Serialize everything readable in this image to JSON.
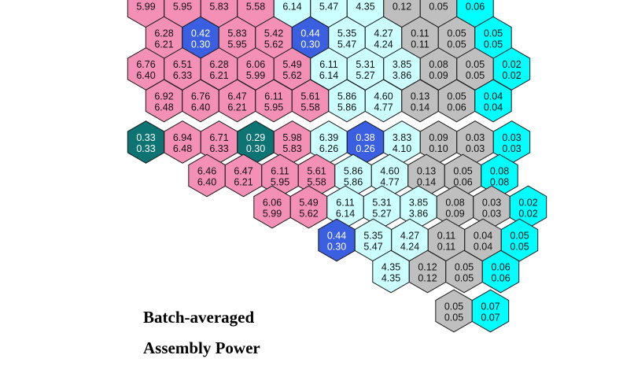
{
  "colors": {
    "pink": "#f48fb6",
    "light_cyan": "#ccffff",
    "gray": "#bfbfbf",
    "cyan": "#00ffff",
    "blue": "#3a5fe0",
    "teal": "#0e7373"
  },
  "legend": {
    "line1": "Batch-averaged",
    "line2": "Assembly Power"
  },
  "rows": [
    {
      "cells": [
        {
          "top": "5.99",
          "bottom": "",
          "color": "pink"
        },
        {
          "top": "5.95",
          "bottom": "",
          "color": "pink"
        },
        {
          "top": "5.83",
          "bottom": "",
          "color": "pink"
        },
        {
          "top": "5.58",
          "bottom": "",
          "color": "pink"
        },
        {
          "top": "6.14",
          "bottom": "",
          "color": "light_cyan"
        },
        {
          "top": "5.47",
          "bottom": "",
          "color": "light_cyan"
        },
        {
          "top": "4.35",
          "bottom": "",
          "color": "light_cyan"
        },
        {
          "top": "0.12",
          "bottom": "",
          "color": "gray"
        },
        {
          "top": "0.05",
          "bottom": "",
          "color": "gray"
        },
        {
          "top": "0.06",
          "bottom": "",
          "color": "cyan"
        }
      ]
    },
    {
      "cells": [
        {
          "top": "6.28",
          "bottom": "6.21",
          "color": "pink"
        },
        {
          "top": "0.42",
          "bottom": "0.30",
          "color": "blue"
        },
        {
          "top": "5.83",
          "bottom": "5.95",
          "color": "pink"
        },
        {
          "top": "5.42",
          "bottom": "5.62",
          "color": "pink"
        },
        {
          "top": "0.44",
          "bottom": "0.30",
          "color": "blue"
        },
        {
          "top": "5.35",
          "bottom": "5.47",
          "color": "light_cyan"
        },
        {
          "top": "4.27",
          "bottom": "4.24",
          "color": "light_cyan"
        },
        {
          "top": "0.11",
          "bottom": "0.11",
          "color": "gray"
        },
        {
          "top": "0.05",
          "bottom": "0.05",
          "color": "gray"
        },
        {
          "top": "0.05",
          "bottom": "0.05",
          "color": "cyan"
        }
      ]
    },
    {
      "cells": [
        {
          "top": "6.76",
          "bottom": "6.40",
          "color": "pink"
        },
        {
          "top": "6.51",
          "bottom": "6.33",
          "color": "pink"
        },
        {
          "top": "6.28",
          "bottom": "6.21",
          "color": "pink"
        },
        {
          "top": "6.06",
          "bottom": "5.99",
          "color": "pink"
        },
        {
          "top": "5.49",
          "bottom": "5.62",
          "color": "pink"
        },
        {
          "top": "6.11",
          "bottom": "6.14",
          "color": "light_cyan"
        },
        {
          "top": "5.31",
          "bottom": "5.27",
          "color": "light_cyan"
        },
        {
          "top": "3.85",
          "bottom": "3.86",
          "color": "light_cyan"
        },
        {
          "top": "0.08",
          "bottom": "0.09",
          "color": "gray"
        },
        {
          "top": "0.05",
          "bottom": "0.05",
          "color": "gray"
        },
        {
          "top": "0.02",
          "bottom": "0.02",
          "color": "cyan"
        }
      ]
    },
    {
      "cells": [
        {
          "top": "6.92",
          "bottom": "6.48",
          "color": "pink"
        },
        {
          "top": "6.76",
          "bottom": "6.40",
          "color": "pink"
        },
        {
          "top": "6.47",
          "bottom": "6.21",
          "color": "pink"
        },
        {
          "top": "6.11",
          "bottom": "5.95",
          "color": "pink"
        },
        {
          "top": "5.61",
          "bottom": "5.58",
          "color": "pink"
        },
        {
          "top": "5.86",
          "bottom": "5.86",
          "color": "light_cyan"
        },
        {
          "top": "4.60",
          "bottom": "4.77",
          "color": "light_cyan"
        },
        {
          "top": "0.13",
          "bottom": "0.14",
          "color": "gray"
        },
        {
          "top": "0.05",
          "bottom": "0.06",
          "color": "gray"
        },
        {
          "top": "0.04",
          "bottom": "0.04",
          "color": "cyan"
        }
      ]
    },
    {
      "cells": [
        {
          "top": "0.33",
          "bottom": "0.33",
          "color": "teal"
        },
        {
          "top": "6.94",
          "bottom": "6.48",
          "color": "pink"
        },
        {
          "top": "6.71",
          "bottom": "6.33",
          "color": "pink"
        },
        {
          "top": "0.29",
          "bottom": "0.30",
          "color": "teal"
        },
        {
          "top": "5.98",
          "bottom": "5.83",
          "color": "pink"
        },
        {
          "top": "6.39",
          "bottom": "6.26",
          "color": "light_cyan"
        },
        {
          "top": "0.38",
          "bottom": "0.26",
          "color": "blue"
        },
        {
          "top": "3.83",
          "bottom": "4.10",
          "color": "light_cyan"
        },
        {
          "top": "0.09",
          "bottom": "0.10",
          "color": "gray"
        },
        {
          "top": "0.03",
          "bottom": "0.03",
          "color": "gray"
        },
        {
          "top": "0.03",
          "bottom": "0.03",
          "color": "cyan"
        }
      ]
    },
    {
      "cells": [
        {
          "top": "6.46",
          "bottom": "6.40",
          "color": "pink"
        },
        {
          "top": "6.47",
          "bottom": "6.21",
          "color": "pink"
        },
        {
          "top": "6.11",
          "bottom": "5.95",
          "color": "pink"
        },
        {
          "top": "5.61",
          "bottom": "5.58",
          "color": "pink"
        },
        {
          "top": "5.86",
          "bottom": "5.86",
          "color": "light_cyan"
        },
        {
          "top": "4.60",
          "bottom": "4.77",
          "color": "light_cyan"
        },
        {
          "top": "0.13",
          "bottom": "0.14",
          "color": "gray"
        },
        {
          "top": "0.05",
          "bottom": "0.06",
          "color": "gray"
        },
        {
          "top": "0.08",
          "bottom": "0.08",
          "color": "cyan"
        }
      ]
    },
    {
      "cells": [
        {
          "top": "6.06",
          "bottom": "5.99",
          "color": "pink"
        },
        {
          "top": "5.49",
          "bottom": "5.62",
          "color": "pink"
        },
        {
          "top": "6.11",
          "bottom": "6.14",
          "color": "light_cyan"
        },
        {
          "top": "5.31",
          "bottom": "5.27",
          "color": "light_cyan"
        },
        {
          "top": "3.85",
          "bottom": "3.86",
          "color": "light_cyan"
        },
        {
          "top": "0.08",
          "bottom": "0.09",
          "color": "gray"
        },
        {
          "top": "0.03",
          "bottom": "0.03",
          "color": "gray"
        },
        {
          "top": "0.02",
          "bottom": "0.02",
          "color": "cyan"
        }
      ]
    },
    {
      "cells": [
        {
          "top": "0.44",
          "bottom": "0.30",
          "color": "blue"
        },
        {
          "top": "5.35",
          "bottom": "5.47",
          "color": "light_cyan"
        },
        {
          "top": "4.27",
          "bottom": "4.24",
          "color": "light_cyan"
        },
        {
          "top": "0.11",
          "bottom": "0.11",
          "color": "gray"
        },
        {
          "top": "0.04",
          "bottom": "0.04",
          "color": "gray"
        },
        {
          "top": "0.05",
          "bottom": "0.05",
          "color": "cyan"
        }
      ]
    },
    {
      "cells": [
        {
          "top": "4.35",
          "bottom": "4.35",
          "color": "light_cyan"
        },
        {
          "top": "0.12",
          "bottom": "0.12",
          "color": "gray"
        },
        {
          "top": "0.05",
          "bottom": "0.05",
          "color": "gray"
        },
        {
          "top": "0.06",
          "bottom": "0.06",
          "color": "cyan"
        }
      ]
    },
    {
      "cells": [
        {
          "top": "0.05",
          "bottom": "0.05",
          "color": "gray"
        },
        {
          "top": "0.07",
          "bottom": "0.07",
          "color": "cyan"
        }
      ]
    }
  ]
}
